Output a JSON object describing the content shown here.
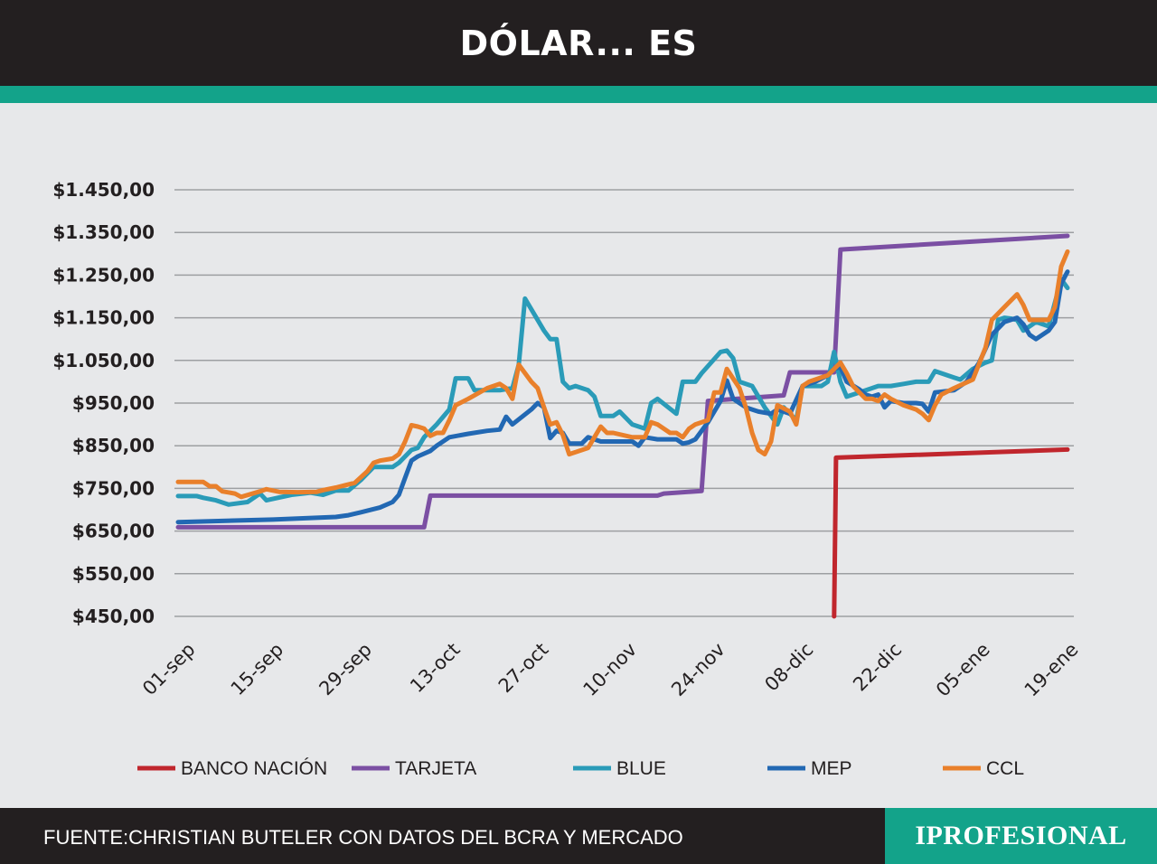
{
  "header": {
    "title": "DÓLAR... ES"
  },
  "footer": {
    "source": "FUENTE:CHRISTIAN BUTELER CON DATOS DEL BCRA Y MERCADO",
    "brand": "IPROFESIONAL"
  },
  "colors": {
    "header_bg": "#231f20",
    "accent": "#13a38a",
    "background": "#e7e8ea",
    "gridline": "#9d9fa2",
    "brand_bg": "#13a38a"
  },
  "chart_data": {
    "type": "line",
    "title": "DÓLAR... ES",
    "xlabel": "",
    "ylabel": "",
    "ylim": [
      450,
      1450
    ],
    "yticks": [
      "$1.450,00",
      "$1.350,00",
      "$1.250,00",
      "$1.150,00",
      "$1.050,00",
      "$950,00",
      "$850,00",
      "$750,00",
      "$650,00",
      "$550,00",
      "$450,00"
    ],
    "ytick_values": [
      1450,
      1350,
      1250,
      1150,
      1050,
      950,
      850,
      750,
      650,
      550,
      450
    ],
    "xticks": [
      "01-sep",
      "15-sep",
      "29-sep",
      "13-oct",
      "27-oct",
      "10-nov",
      "24-nov",
      "08-dic",
      "22-dic",
      "05-ene",
      "19-ene"
    ],
    "xtick_days": [
      0,
      14,
      28,
      42,
      56,
      70,
      84,
      98,
      112,
      126,
      140
    ],
    "x_unit": "days since 01-sep",
    "grid": true,
    "legend_position": "bottom",
    "series": [
      {
        "name": "BANCO NACIÓN",
        "color": "#c0262d",
        "points": [
          [
            104,
            450
          ],
          [
            104.3,
            822
          ],
          [
            141,
            841
          ]
        ]
      },
      {
        "name": "TARJETA",
        "color": "#7b4fa3",
        "points": [
          [
            0,
            659
          ],
          [
            39,
            659
          ],
          [
            40,
            733
          ],
          [
            76,
            733
          ],
          [
            77,
            738
          ],
          [
            83,
            744
          ],
          [
            84,
            955
          ],
          [
            96,
            968
          ],
          [
            97,
            1022
          ],
          [
            102,
            1022
          ],
          [
            104,
            1022
          ],
          [
            105,
            1310
          ],
          [
            141,
            1342
          ]
        ]
      },
      {
        "name": "BLUE",
        "color": "#2a9bb8",
        "points": [
          [
            0,
            732
          ],
          [
            3,
            732
          ],
          [
            4,
            728
          ],
          [
            6,
            722
          ],
          [
            8,
            712
          ],
          [
            11,
            718
          ],
          [
            13,
            738
          ],
          [
            14,
            722
          ],
          [
            18,
            735
          ],
          [
            21,
            740
          ],
          [
            23,
            735
          ],
          [
            25,
            745
          ],
          [
            27,
            745
          ],
          [
            29,
            770
          ],
          [
            31,
            800
          ],
          [
            34,
            800
          ],
          [
            35,
            810
          ],
          [
            37,
            840
          ],
          [
            38,
            845
          ],
          [
            39,
            870
          ],
          [
            41,
            900
          ],
          [
            43,
            935
          ],
          [
            44,
            1008
          ],
          [
            46,
            1008
          ],
          [
            47,
            980
          ],
          [
            51,
            980
          ],
          [
            53,
            985
          ],
          [
            54,
            1040
          ],
          [
            55,
            1195
          ],
          [
            58,
            1120
          ],
          [
            59,
            1100
          ],
          [
            60,
            1100
          ],
          [
            61,
            1000
          ],
          [
            62,
            985
          ],
          [
            63,
            990
          ],
          [
            65,
            980
          ],
          [
            66,
            965
          ],
          [
            67,
            920
          ],
          [
            69,
            920
          ],
          [
            70,
            930
          ],
          [
            72,
            900
          ],
          [
            74,
            890
          ],
          [
            75,
            950
          ],
          [
            76,
            960
          ],
          [
            79,
            925
          ],
          [
            80,
            1000
          ],
          [
            82,
            1000
          ],
          [
            83,
            1020
          ],
          [
            86,
            1070
          ],
          [
            87,
            1073
          ],
          [
            88,
            1055
          ],
          [
            89,
            1000
          ],
          [
            91,
            990
          ],
          [
            93,
            940
          ],
          [
            95,
            900
          ],
          [
            96,
            940
          ],
          [
            98,
            910
          ],
          [
            99,
            990
          ],
          [
            102,
            990
          ],
          [
            103,
            1000
          ],
          [
            104,
            1070
          ],
          [
            105,
            1000
          ],
          [
            106,
            965
          ],
          [
            108,
            975
          ],
          [
            110,
            985
          ],
          [
            111,
            990
          ],
          [
            113,
            990
          ],
          [
            115,
            995
          ],
          [
            117,
            1000
          ],
          [
            119,
            1000
          ],
          [
            120,
            1025
          ],
          [
            123,
            1010
          ],
          [
            124,
            1005
          ],
          [
            126,
            1030
          ],
          [
            128,
            1045
          ],
          [
            129,
            1050
          ],
          [
            130,
            1145
          ],
          [
            131,
            1150
          ],
          [
            132,
            1148
          ],
          [
            133,
            1145
          ],
          [
            134,
            1120
          ],
          [
            136,
            1140
          ],
          [
            138,
            1130
          ],
          [
            139,
            1185
          ],
          [
            140,
            1240
          ],
          [
            141,
            1220
          ]
        ]
      },
      {
        "name": "MEP",
        "color": "#2268b3",
        "points": [
          [
            0,
            671
          ],
          [
            15,
            677
          ],
          [
            25,
            683
          ],
          [
            27,
            687
          ],
          [
            29,
            694
          ],
          [
            32,
            705
          ],
          [
            34,
            718
          ],
          [
            35,
            735
          ],
          [
            36,
            775
          ],
          [
            37,
            815
          ],
          [
            38,
            825
          ],
          [
            40,
            838
          ],
          [
            41,
            850
          ],
          [
            43,
            870
          ],
          [
            46,
            878
          ],
          [
            49,
            885
          ],
          [
            51,
            888
          ],
          [
            52,
            918
          ],
          [
            53,
            900
          ],
          [
            56,
            935
          ],
          [
            57,
            950
          ],
          [
            58,
            940
          ],
          [
            59,
            868
          ],
          [
            60,
            885
          ],
          [
            61,
            880
          ],
          [
            62,
            855
          ],
          [
            64,
            855
          ],
          [
            65,
            870
          ],
          [
            66,
            865
          ],
          [
            67,
            860
          ],
          [
            70,
            860
          ],
          [
            72,
            860
          ],
          [
            73,
            850
          ],
          [
            74,
            870
          ],
          [
            76,
            865
          ],
          [
            79,
            865
          ],
          [
            80,
            855
          ],
          [
            81,
            858
          ],
          [
            82,
            865
          ],
          [
            84,
            905
          ],
          [
            86,
            955
          ],
          [
            87,
            1003
          ],
          [
            88,
            960
          ],
          [
            90,
            940
          ],
          [
            91,
            935
          ],
          [
            92,
            930
          ],
          [
            94,
            925
          ],
          [
            95,
            935
          ],
          [
            97,
            925
          ],
          [
            99,
            990
          ],
          [
            101,
            1000
          ],
          [
            103,
            1015
          ],
          [
            104,
            1030
          ],
          [
            105,
            1035
          ],
          [
            106,
            1000
          ],
          [
            108,
            982
          ],
          [
            109,
            970
          ],
          [
            110,
            965
          ],
          [
            111,
            970
          ],
          [
            112,
            940
          ],
          [
            113,
            955
          ],
          [
            115,
            950
          ],
          [
            117,
            950
          ],
          [
            118,
            948
          ],
          [
            119,
            930
          ],
          [
            120,
            975
          ],
          [
            123,
            980
          ],
          [
            125,
            1000
          ],
          [
            127,
            1045
          ],
          [
            129,
            1110
          ],
          [
            131,
            1140
          ],
          [
            133,
            1150
          ],
          [
            134,
            1135
          ],
          [
            135,
            1110
          ],
          [
            136,
            1100
          ],
          [
            138,
            1120
          ],
          [
            139,
            1140
          ],
          [
            140,
            1230
          ],
          [
            141,
            1258
          ]
        ]
      },
      {
        "name": "CCL",
        "color": "#e9802b",
        "points": [
          [
            0,
            765
          ],
          [
            4,
            765
          ],
          [
            5,
            755
          ],
          [
            6,
            755
          ],
          [
            7,
            743
          ],
          [
            9,
            738
          ],
          [
            10,
            730
          ],
          [
            13,
            743
          ],
          [
            14,
            748
          ],
          [
            16,
            742
          ],
          [
            19,
            741
          ],
          [
            22,
            742
          ],
          [
            23,
            746
          ],
          [
            25,
            752
          ],
          [
            28,
            763
          ],
          [
            30,
            790
          ],
          [
            31,
            810
          ],
          [
            32,
            815
          ],
          [
            34,
            820
          ],
          [
            35,
            830
          ],
          [
            36,
            860
          ],
          [
            37,
            898
          ],
          [
            38,
            895
          ],
          [
            39,
            890
          ],
          [
            40,
            873
          ],
          [
            41,
            880
          ],
          [
            42,
            880
          ],
          [
            43,
            910
          ],
          [
            44,
            945
          ],
          [
            46,
            960
          ],
          [
            49,
            985
          ],
          [
            51,
            995
          ],
          [
            52,
            985
          ],
          [
            53,
            960
          ],
          [
            54,
            1040
          ],
          [
            56,
            1000
          ],
          [
            57,
            985
          ],
          [
            58,
            940
          ],
          [
            59,
            900
          ],
          [
            60,
            905
          ],
          [
            61,
            875
          ],
          [
            62,
            830
          ],
          [
            65,
            845
          ],
          [
            66,
            870
          ],
          [
            67,
            895
          ],
          [
            68,
            880
          ],
          [
            69,
            880
          ],
          [
            72,
            870
          ],
          [
            74,
            870
          ],
          [
            75,
            905
          ],
          [
            76,
            900
          ],
          [
            78,
            880
          ],
          [
            79,
            880
          ],
          [
            80,
            870
          ],
          [
            81,
            890
          ],
          [
            82,
            900
          ],
          [
            84,
            910
          ],
          [
            85,
            975
          ],
          [
            86,
            975
          ],
          [
            87,
            1030
          ],
          [
            89,
            985
          ],
          [
            90,
            940
          ],
          [
            91,
            880
          ],
          [
            92,
            840
          ],
          [
            93,
            830
          ],
          [
            94,
            860
          ],
          [
            95,
            945
          ],
          [
            97,
            930
          ],
          [
            98,
            900
          ],
          [
            99,
            990
          ],
          [
            100,
            1000
          ],
          [
            101,
            1005
          ],
          [
            103,
            1015
          ],
          [
            105,
            1045
          ],
          [
            106,
            1020
          ],
          [
            107,
            990
          ],
          [
            109,
            960
          ],
          [
            110,
            960
          ],
          [
            111,
            955
          ],
          [
            112,
            970
          ],
          [
            113,
            960
          ],
          [
            115,
            945
          ],
          [
            117,
            935
          ],
          [
            118,
            925
          ],
          [
            119,
            910
          ],
          [
            120,
            945
          ],
          [
            121,
            970
          ],
          [
            123,
            985
          ],
          [
            126,
            1005
          ],
          [
            128,
            1080
          ],
          [
            129,
            1145
          ],
          [
            131,
            1175
          ],
          [
            133,
            1205
          ],
          [
            134,
            1180
          ],
          [
            135,
            1145
          ],
          [
            136,
            1145
          ],
          [
            138,
            1145
          ],
          [
            139,
            1175
          ],
          [
            140,
            1270
          ],
          [
            141,
            1305
          ]
        ]
      }
    ]
  }
}
